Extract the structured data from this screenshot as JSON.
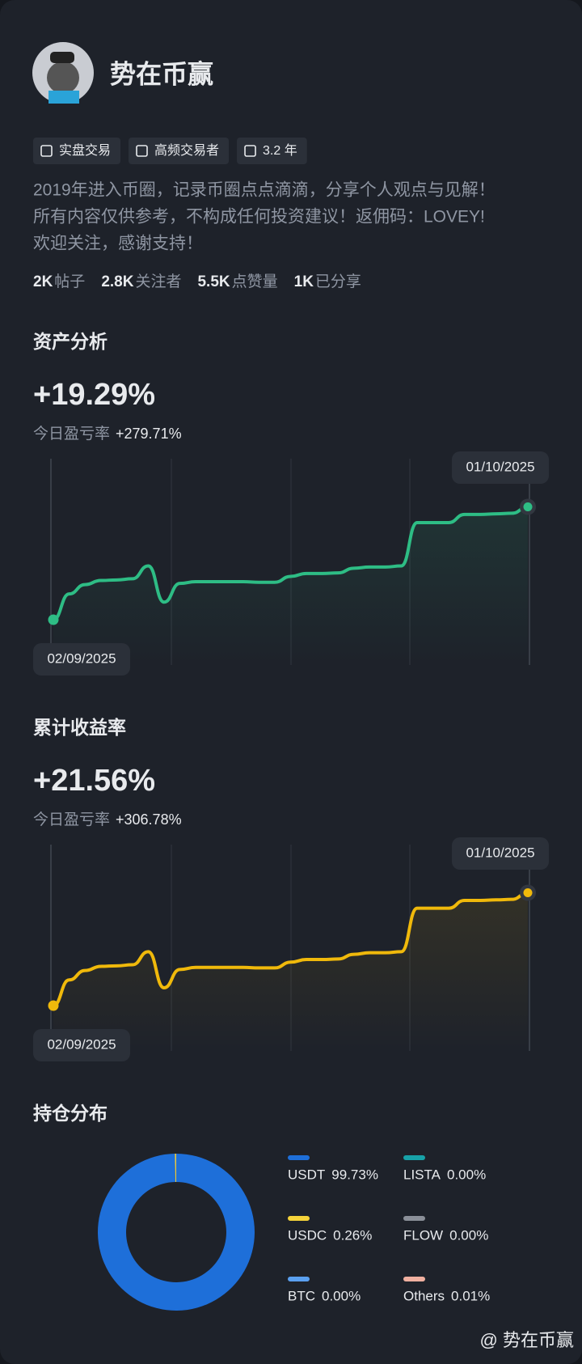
{
  "profile": {
    "name": "势在币赢",
    "tags": [
      "实盘交易",
      "高频交易者",
      "3.2 年"
    ],
    "bio": [
      "2019年进入币圈，记录币圈点点滴滴，分享个人观点与见解！",
      "所有内容仅供参考，不构成任何投资建议！返佣码：LOVEY!",
      "欢迎关注，感谢支持！"
    ],
    "stats": [
      {
        "value": "2K",
        "label": "帖子"
      },
      {
        "value": "2.8K",
        "label": "关注者"
      },
      {
        "value": "5.5K",
        "label": "点赞量"
      },
      {
        "value": "1K",
        "label": "已分享"
      }
    ]
  },
  "chart_data": [
    {
      "type": "line",
      "title": "资产分析",
      "headline": "+19.29%",
      "today_label": "今日盈亏率",
      "today_value": "+279.71%",
      "color": "#2ebd85",
      "categories": [
        "02/09/2025",
        null,
        null,
        null,
        null,
        null,
        null,
        null,
        null,
        null,
        null,
        null,
        null,
        null,
        null,
        null,
        null,
        null,
        null,
        null,
        null,
        null,
        null,
        null,
        null,
        null,
        null,
        null,
        null,
        null,
        "01/10/2025"
      ],
      "values": [
        0,
        4.4,
        6.0,
        6.7,
        6.8,
        7.0,
        9.2,
        3.0,
        6.2,
        6.5,
        6.5,
        6.5,
        6.5,
        6.4,
        6.4,
        7.4,
        7.9,
        7.9,
        8.0,
        8.8,
        9.0,
        9.0,
        9.2,
        16.6,
        16.6,
        16.6,
        18.0,
        18.0,
        18.1,
        18.2,
        19.29
      ]
    },
    {
      "type": "line",
      "title": "累计收益率",
      "headline": "+21.56%",
      "today_label": "今日盈亏率",
      "today_value": "+306.78%",
      "color": "#f0b90b",
      "categories": [
        "02/09/2025",
        null,
        null,
        null,
        null,
        null,
        null,
        null,
        null,
        null,
        null,
        null,
        null,
        null,
        null,
        null,
        null,
        null,
        null,
        null,
        null,
        null,
        null,
        null,
        null,
        null,
        null,
        null,
        null,
        null,
        "01/10/2025"
      ],
      "values": [
        0,
        4.9,
        6.7,
        7.5,
        7.6,
        7.8,
        10.3,
        3.4,
        6.9,
        7.3,
        7.3,
        7.3,
        7.3,
        7.2,
        7.2,
        8.3,
        8.8,
        8.8,
        8.9,
        9.8,
        10.1,
        10.1,
        10.3,
        18.6,
        18.6,
        18.6,
        20.1,
        20.1,
        20.2,
        20.3,
        21.56
      ]
    },
    {
      "type": "donut",
      "title": "持仓分布",
      "categories": [
        "USDT",
        "USDC",
        "BTC",
        "LISTA",
        "FLOW",
        "Others"
      ],
      "values": [
        99.73,
        0.26,
        0,
        0,
        0,
        0.01
      ],
      "value_labels": [
        "99.73%",
        "0.26%",
        "0.00%",
        "0.00%",
        "0.00%",
        "0.01%"
      ],
      "colors": [
        "#1e6fd9",
        "#f5d33a",
        "#5aa0f0",
        "#17a2a8",
        "#8a8f98",
        "#f0b0a0"
      ]
    }
  ],
  "watermark": "@ 势在币赢"
}
